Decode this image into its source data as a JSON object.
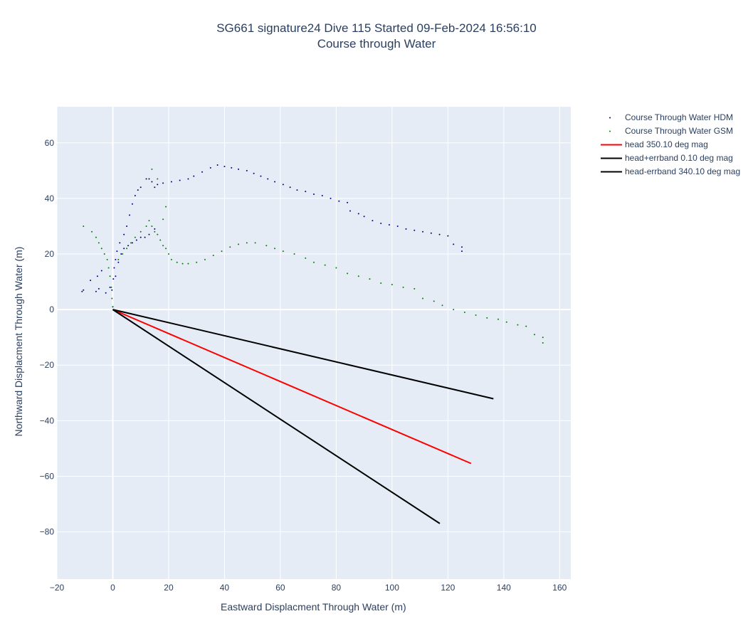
{
  "chart_data": {
    "type": "scatter",
    "title": "SG661 signature24 Dive 115 Started 09-Feb-2024 16:56:10",
    "subtitle": "Course through Water",
    "xlabel": "Eastward Displacment Through Water (m)",
    "ylabel": "Northward Displacment Through Water (m)",
    "xlim": [
      -20,
      164
    ],
    "ylim": [
      -97,
      73
    ],
    "xticks": [
      -20,
      0,
      20,
      40,
      60,
      80,
      100,
      120,
      140,
      160
    ],
    "yticks": [
      -80,
      -60,
      -40,
      -20,
      0,
      20,
      40,
      60
    ],
    "grid": true,
    "legend_position": "top-right",
    "series": [
      {
        "name": "Course Through Water HDM",
        "mode": "markers",
        "color": "#00008b",
        "x": [
          0,
          -0.3,
          0.2,
          0.5,
          1,
          1.5,
          2.5,
          4,
          5,
          6,
          7,
          8,
          9,
          10,
          12,
          13,
          14,
          15,
          16,
          18,
          21,
          24,
          27,
          29,
          32,
          35,
          37.5,
          40,
          42.5,
          45,
          48,
          50.5,
          53,
          55.5,
          58,
          61,
          63.5,
          66,
          69,
          72,
          75,
          78,
          81,
          84,
          85,
          88,
          90,
          93,
          96,
          99,
          102,
          105,
          108,
          111,
          114,
          117,
          120,
          122,
          125,
          125,
          15,
          13,
          11.5,
          10,
          8.5,
          7,
          5.5,
          4,
          3,
          2,
          1,
          -1,
          -2.5,
          -4,
          -5.5,
          -8,
          -10.5,
          -11,
          -6,
          -5
        ],
        "y": [
          1,
          7,
          11,
          15,
          18,
          21,
          24,
          27,
          30,
          34,
          38,
          41,
          43,
          44,
          47,
          47,
          46,
          44,
          45,
          45.5,
          46,
          46.5,
          47,
          48,
          49.5,
          51,
          52,
          51.5,
          51,
          50.5,
          50,
          49,
          48,
          47,
          46,
          45,
          44,
          43,
          42.5,
          41.5,
          41,
          40,
          39,
          38.5,
          35.5,
          34.5,
          33.5,
          32,
          31,
          30.5,
          30,
          29,
          28.5,
          28,
          27.5,
          27,
          26.5,
          23.5,
          22.5,
          21,
          29,
          27,
          26,
          26,
          25,
          24,
          23,
          22,
          20,
          17,
          12,
          8,
          6,
          14,
          12,
          10.5,
          7,
          6.5,
          6.5,
          7.5
        ]
      },
      {
        "name": "Course Through Water GSM",
        "mode": "markers",
        "color": "#008000",
        "x": [
          0,
          -0.3,
          -0.5,
          -1,
          -1.5,
          -2,
          -3,
          -4,
          -5,
          -6,
          -7.5,
          -10.5,
          2,
          3.5,
          5,
          6.5,
          8,
          10,
          12,
          13,
          14,
          15,
          16,
          17,
          18,
          19,
          20,
          21,
          23,
          25,
          27,
          30,
          33,
          36,
          39,
          42,
          45,
          48,
          51,
          55,
          58,
          61,
          65,
          69,
          72,
          76,
          80,
          84,
          88,
          92,
          96,
          100,
          104,
          108,
          111,
          115,
          118,
          122,
          126,
          130,
          134,
          138,
          141,
          145,
          148,
          151,
          154,
          154,
          14,
          16,
          18,
          19
        ],
        "y": [
          1,
          4,
          8,
          12,
          15,
          18,
          20,
          22,
          24,
          26,
          28,
          30,
          18,
          20,
          22,
          24,
          26,
          28,
          30,
          32,
          30,
          28,
          27,
          25,
          23,
          22,
          20,
          18,
          17,
          16.5,
          16.5,
          17,
          18,
          19.5,
          21,
          22.5,
          23.5,
          24,
          24,
          23,
          22,
          21,
          20,
          18.5,
          17,
          16,
          15,
          13,
          12,
          11,
          9.5,
          9,
          8,
          7.5,
          4,
          3,
          1.5,
          0,
          -1,
          -2,
          -3,
          -3.5,
          -4.5,
          -5.5,
          -6,
          -9,
          -10,
          -12,
          50.5,
          47,
          32.5,
          37
        ]
      },
      {
        "name": "head 350.10 deg mag",
        "mode": "lines",
        "color": "#ff0000",
        "x": [
          0,
          128.3
        ],
        "y": [
          0,
          -55.4
        ]
      },
      {
        "name": "head+errband 0.10 deg mag",
        "mode": "lines",
        "color": "#000000",
        "x": [
          0,
          136.3
        ],
        "y": [
          0,
          -32.1
        ]
      },
      {
        "name": "head-errband 340.10 deg mag",
        "mode": "lines",
        "color": "#000000",
        "x": [
          0,
          117.1
        ],
        "y": [
          0,
          -77
        ]
      }
    ]
  }
}
